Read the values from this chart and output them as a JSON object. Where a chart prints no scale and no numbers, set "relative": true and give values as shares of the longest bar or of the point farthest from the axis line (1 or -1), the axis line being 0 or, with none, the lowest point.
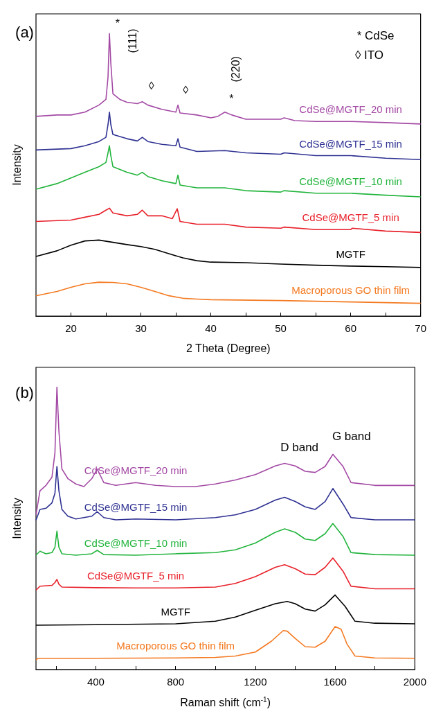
{
  "chart_data": [
    {
      "type": "line",
      "xlabel": "2 Theta (Degree)",
      "ylabel": "Intensity",
      "relative": true,
      "xlim": [
        15,
        70
      ],
      "xticks": [
        20,
        {
          "value": 25,
          "label": null
        },
        30,
        {
          "value": 35,
          "label": null
        },
        40,
        {
          "value": 45,
          "label": null
        },
        50,
        {
          "value": 55,
          "label": null
        },
        60,
        {
          "value": 65,
          "label": null
        },
        70
      ],
      "tick_labels": "x",
      "grid": false,
      "legend": false,
      "marker": "none",
      "line_style": "solid",
      "annotations": [
        "(a)",
        "* CdSe",
        "◊ ITO",
        "*",
        "(111)",
        "◊",
        "◊",
        "*",
        "(220)"
      ],
      "series": [
        {
          "name": "CdSe@MGTF_20 min",
          "color": "#a349a4",
          "x": [
            15,
            18,
            20,
            22,
            24,
            25,
            25.3,
            25.5,
            25.7,
            26,
            27,
            28,
            29.5,
            30.2,
            31,
            33,
            35,
            35.3,
            35.6,
            38,
            40,
            41,
            42,
            43,
            45,
            50,
            50.5,
            52,
            55,
            60,
            65,
            70
          ],
          "values": [
            0.707,
            0.712,
            0.712,
            0.722,
            0.747,
            0.767,
            0.846,
            1.0,
            0.896,
            0.787,
            0.767,
            0.757,
            0.752,
            0.759,
            0.747,
            0.732,
            0.722,
            0.747,
            0.719,
            0.712,
            0.702,
            0.707,
            0.722,
            0.712,
            0.697,
            0.697,
            0.702,
            0.692,
            0.689,
            0.689,
            0.685,
            0.68
          ]
        },
        {
          "name": "CdSe@MGTF_15 min",
          "color": "#2e3192",
          "x": [
            15,
            20,
            22,
            24,
            25,
            25.3,
            25.5,
            25.7,
            26,
            28,
            29.5,
            30.2,
            31,
            33,
            35,
            35.3,
            35.6,
            38,
            42,
            45,
            50,
            50.5,
            55,
            60,
            65,
            70
          ],
          "values": [
            0.588,
            0.593,
            0.603,
            0.618,
            0.633,
            0.678,
            0.722,
            0.678,
            0.643,
            0.628,
            0.62,
            0.633,
            0.618,
            0.608,
            0.603,
            0.628,
            0.598,
            0.583,
            0.586,
            0.578,
            0.573,
            0.578,
            0.568,
            0.568,
            0.559,
            0.554
          ]
        },
        {
          "name": "CdSe@MGTF_10 min",
          "color": "#22b43c",
          "x": [
            15,
            18,
            20,
            22,
            24,
            25,
            25.3,
            25.5,
            25.7,
            26,
            28,
            29.5,
            30.2,
            31,
            33,
            35,
            35.3,
            35.6,
            38,
            42,
            45,
            50,
            50.5,
            55,
            60,
            65,
            70
          ],
          "values": [
            0.449,
            0.469,
            0.489,
            0.509,
            0.529,
            0.544,
            0.578,
            0.603,
            0.568,
            0.529,
            0.509,
            0.499,
            0.509,
            0.494,
            0.479,
            0.469,
            0.499,
            0.464,
            0.454,
            0.454,
            0.444,
            0.439,
            0.444,
            0.435,
            0.435,
            0.428,
            0.422
          ]
        },
        {
          "name": "CdSe@MGTF_5 min",
          "color": "#e8202a",
          "x": [
            15,
            20,
            22,
            24,
            25,
            25.5,
            26,
            28,
            29.5,
            30.2,
            31,
            33,
            34.5,
            35.2,
            35.6,
            38,
            42,
            45,
            50,
            50.5,
            55,
            60,
            60.2,
            65,
            70
          ],
          "values": [
            0.335,
            0.34,
            0.35,
            0.36,
            0.375,
            0.382,
            0.365,
            0.355,
            0.36,
            0.375,
            0.355,
            0.355,
            0.345,
            0.38,
            0.335,
            0.325,
            0.325,
            0.315,
            0.311,
            0.315,
            0.306,
            0.306,
            0.311,
            0.301,
            0.296
          ]
        },
        {
          "name": "MGTF",
          "color": "#000000",
          "x": [
            15,
            18,
            20,
            22,
            24,
            26,
            28,
            30,
            32,
            34,
            36,
            38,
            40,
            45,
            50,
            55,
            60,
            65,
            70
          ],
          "values": [
            0.211,
            0.231,
            0.251,
            0.266,
            0.269,
            0.261,
            0.253,
            0.246,
            0.236,
            0.221,
            0.206,
            0.196,
            0.191,
            0.189,
            0.184,
            0.18,
            0.177,
            0.175,
            0.172
          ]
        },
        {
          "name": "Macroporous GO thin film",
          "color": "#f47920",
          "x": [
            15,
            18,
            20,
            22,
            24,
            26,
            28,
            30,
            32,
            34,
            36,
            38,
            40,
            50,
            60,
            70
          ],
          "values": [
            0.072,
            0.087,
            0.102,
            0.114,
            0.12,
            0.119,
            0.114,
            0.102,
            0.087,
            0.072,
            0.063,
            0.06,
            0.058,
            0.055,
            0.05,
            0.045
          ]
        }
      ]
    },
    {
      "type": "line",
      "xlabel": "Raman shift (cm$^{-1}$)",
      "ylabel": "Intensity",
      "relative": true,
      "xlim": [
        100,
        2000
      ],
      "xticks": [
        {
          "value": 200,
          "label": null
        },
        400,
        {
          "value": 600,
          "label": null
        },
        800,
        {
          "value": 1000,
          "label": null
        },
        1200,
        {
          "value": 1400,
          "label": null
        },
        1600,
        {
          "value": 1800,
          "label": null
        },
        2000
      ],
      "tick_labels": "x",
      "grid": false,
      "legend": false,
      "marker": "none",
      "line_style": "solid",
      "annotations": [
        "(b)",
        "D band",
        "G band"
      ],
      "series": [
        {
          "name": "CdSe@MGTF_20 min",
          "color": "#a349a4",
          "x": [
            100,
            120,
            150,
            180,
            195,
            205,
            215,
            230,
            260,
            300,
            340,
            380,
            407,
            440,
            500,
            600,
            700,
            800,
            900,
            1000,
            1100,
            1200,
            1300,
            1347,
            1400,
            1450,
            1500,
            1550,
            1589,
            1640,
            1680,
            1800,
            2000
          ],
          "values": [
            0.548,
            0.633,
            0.652,
            0.681,
            0.767,
            1.0,
            0.843,
            0.71,
            0.676,
            0.657,
            0.648,
            0.676,
            0.71,
            0.662,
            0.652,
            0.662,
            0.652,
            0.648,
            0.648,
            0.657,
            0.671,
            0.69,
            0.721,
            0.73,
            0.721,
            0.702,
            0.698,
            0.719,
            0.762,
            0.719,
            0.662,
            0.652,
            0.652
          ]
        },
        {
          "name": "CdSe@MGTF_15 min",
          "color": "#2e3192",
          "x": [
            100,
            120,
            150,
            180,
            195,
            205,
            215,
            230,
            260,
            300,
            380,
            407,
            440,
            500,
            600,
            800,
            1000,
            1100,
            1200,
            1300,
            1347,
            1400,
            1450,
            1500,
            1550,
            1589,
            1640,
            1680,
            1800,
            2000
          ],
          "values": [
            0.529,
            0.567,
            0.571,
            0.59,
            0.624,
            0.719,
            0.633,
            0.567,
            0.543,
            0.533,
            0.543,
            0.559,
            0.538,
            0.53,
            0.533,
            0.53,
            0.538,
            0.548,
            0.567,
            0.6,
            0.61,
            0.595,
            0.576,
            0.567,
            0.595,
            0.641,
            0.586,
            0.538,
            0.53,
            0.53
          ]
        },
        {
          "name": "CdSe@MGTF_10 min",
          "color": "#22b43c",
          "x": [
            100,
            120,
            150,
            180,
            195,
            205,
            215,
            230,
            300,
            380,
            407,
            440,
            600,
            800,
            1000,
            1100,
            1200,
            1300,
            1347,
            1400,
            1450,
            1500,
            1550,
            1589,
            1640,
            1680,
            1800,
            2000
          ],
          "values": [
            0.405,
            0.419,
            0.41,
            0.414,
            0.433,
            0.49,
            0.433,
            0.41,
            0.405,
            0.41,
            0.422,
            0.407,
            0.405,
            0.41,
            0.414,
            0.424,
            0.448,
            0.486,
            0.498,
            0.486,
            0.462,
            0.457,
            0.481,
            0.517,
            0.471,
            0.414,
            0.407,
            0.405
          ]
        },
        {
          "name": "CdSe@MGTF_5 min",
          "color": "#e8202a",
          "x": [
            100,
            120,
            180,
            195,
            205,
            215,
            230,
            400,
            600,
            800,
            1000,
            1100,
            1200,
            1300,
            1347,
            1400,
            1450,
            1500,
            1550,
            1589,
            1640,
            1680,
            1800,
            2000
          ],
          "values": [
            0.281,
            0.295,
            0.298,
            0.308,
            0.319,
            0.302,
            0.292,
            0.29,
            0.289,
            0.289,
            0.292,
            0.305,
            0.329,
            0.362,
            0.371,
            0.357,
            0.338,
            0.336,
            0.362,
            0.395,
            0.348,
            0.295,
            0.286,
            0.286
          ]
        },
        {
          "name": "MGTF",
          "color": "#000000",
          "x": [
            100,
            400,
            800,
            1000,
            1100,
            1200,
            1300,
            1360,
            1400,
            1450,
            1500,
            1550,
            1600,
            1650,
            1700,
            1800,
            2000
          ],
          "values": [
            0.157,
            0.159,
            0.162,
            0.171,
            0.186,
            0.21,
            0.233,
            0.241,
            0.233,
            0.214,
            0.207,
            0.229,
            0.264,
            0.224,
            0.171,
            0.164,
            0.162
          ]
        },
        {
          "name": "Macroporous GO thin film",
          "color": "#f47920",
          "x": [
            100,
            110,
            400,
            800,
            1000,
            1100,
            1200,
            1280,
            1340,
            1360,
            1400,
            1450,
            1500,
            1550,
            1600,
            1630,
            1660,
            1700,
            1800,
            2000
          ],
          "values": [
            0.033,
            0.04,
            0.04,
            0.041,
            0.043,
            0.048,
            0.062,
            0.1,
            0.138,
            0.136,
            0.11,
            0.081,
            0.079,
            0.1,
            0.152,
            0.143,
            0.09,
            0.048,
            0.041,
            0.04
          ]
        }
      ]
    }
  ]
}
